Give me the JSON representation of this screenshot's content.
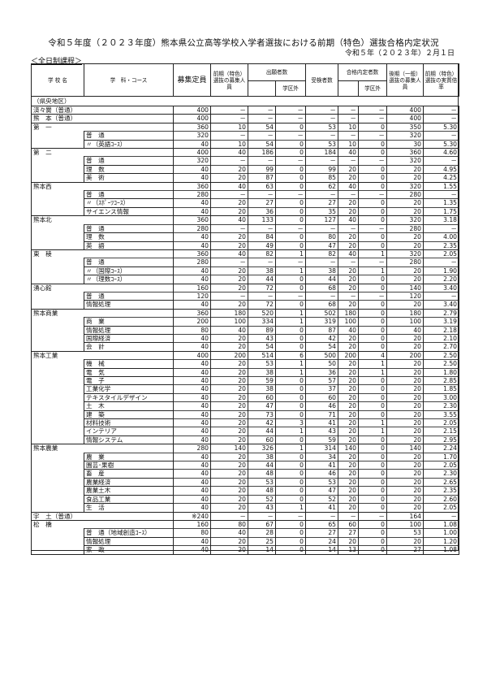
{
  "title": "令和５年度（２０２３年度）熊本県公立高等学校入学者選抜における前期（特色）選抜合格内定状況",
  "date": "令和５年（２０２３年）２月１日",
  "course_type": "＜全日制課程＞",
  "headers": {
    "school": "学 校 名",
    "course": "学　科・コース",
    "capacity": "募集定員",
    "early_quota": "前期（特色）選抜の募集人員",
    "applicants": "出願者数",
    "applicants_outside": "学区外",
    "examinees": "受検者数",
    "passed": "合格内定者数",
    "passed_outside": "学区外",
    "later_quota": "後期（一般）選抜の募集人員",
    "ratio": "前期（特色）選抜の実質倍率"
  },
  "region": "（県央地区）",
  "rows": [
    [
      "済々黌（普通）",
      "",
      "400",
      "－",
      "－",
      "－",
      "－",
      "－",
      "－",
      "400",
      "－"
    ],
    [
      "熊　本（普通）",
      "",
      "400",
      "－",
      "－",
      "－",
      "－",
      "－",
      "－",
      "400",
      "－"
    ],
    [
      "第　一",
      "",
      "360",
      "10",
      "54",
      "0",
      "53",
      "10",
      "0",
      "350",
      "5.30"
    ],
    [
      "",
      "普　通",
      "320",
      "－",
      "－",
      "－",
      "－",
      "－",
      "－",
      "320",
      "－"
    ],
    [
      "",
      "〃（英語ｺｰｽ）",
      "40",
      "10",
      "54",
      "0",
      "53",
      "10",
      "0",
      "30",
      "5.30"
    ],
    [
      "第　二",
      "",
      "400",
      "40",
      "186",
      "0",
      "184",
      "40",
      "0",
      "360",
      "4.60"
    ],
    [
      "",
      "普　通",
      "320",
      "－",
      "－",
      "－",
      "－",
      "－",
      "－",
      "320",
      "－"
    ],
    [
      "",
      "理　数",
      "40",
      "20",
      "99",
      "0",
      "99",
      "20",
      "0",
      "20",
      "4.95"
    ],
    [
      "",
      "美　術",
      "40",
      "20",
      "87",
      "0",
      "85",
      "20",
      "0",
      "20",
      "4.25"
    ],
    [
      "熊本西",
      "",
      "360",
      "40",
      "63",
      "0",
      "62",
      "40",
      "0",
      "320",
      "1.55"
    ],
    [
      "",
      "普　通",
      "280",
      "－",
      "－",
      "－",
      "－",
      "－",
      "－",
      "280",
      "－"
    ],
    [
      "",
      "〃（ｽﾎﾟｰﾂｺｰｽ）",
      "40",
      "20",
      "27",
      "0",
      "27",
      "20",
      "0",
      "20",
      "1.35"
    ],
    [
      "",
      "サイエンス情報",
      "40",
      "20",
      "36",
      "0",
      "35",
      "20",
      "0",
      "20",
      "1.75"
    ],
    [
      "熊本北",
      "",
      "360",
      "40",
      "133",
      "0",
      "127",
      "40",
      "0",
      "320",
      "3.18"
    ],
    [
      "",
      "普　通",
      "280",
      "－",
      "－",
      "－",
      "－",
      "－",
      "－",
      "280",
      "－"
    ],
    [
      "",
      "理　数",
      "40",
      "20",
      "84",
      "0",
      "80",
      "20",
      "0",
      "20",
      "4.00"
    ],
    [
      "",
      "英　語",
      "40",
      "20",
      "49",
      "0",
      "47",
      "20",
      "0",
      "20",
      "2.35"
    ],
    [
      "東　稜",
      "",
      "360",
      "40",
      "82",
      "1",
      "82",
      "40",
      "1",
      "320",
      "2.05"
    ],
    [
      "",
      "普　通",
      "280",
      "－",
      "－",
      "－",
      "－",
      "－",
      "－",
      "280",
      "－"
    ],
    [
      "",
      "〃（国際ｺｰｽ）",
      "40",
      "20",
      "38",
      "1",
      "38",
      "20",
      "1",
      "20",
      "1.90"
    ],
    [
      "",
      "〃（理数ｺｰｽ）",
      "40",
      "20",
      "44",
      "0",
      "44",
      "20",
      "0",
      "20",
      "2.20"
    ],
    [
      "湧心館",
      "",
      "160",
      "20",
      "72",
      "0",
      "68",
      "20",
      "0",
      "140",
      "3.40"
    ],
    [
      "",
      "普　通",
      "120",
      "－",
      "－",
      "－",
      "－",
      "－",
      "－",
      "120",
      "－"
    ],
    [
      "",
      "情報処理",
      "40",
      "20",
      "72",
      "0",
      "68",
      "20",
      "0",
      "20",
      "3.40"
    ],
    [
      "熊本商業",
      "",
      "360",
      "180",
      "520",
      "1",
      "502",
      "180",
      "0",
      "180",
      "2.79"
    ],
    [
      "",
      "商　業",
      "200",
      "100",
      "334",
      "1",
      "319",
      "100",
      "0",
      "100",
      "3.19"
    ],
    [
      "",
      "情報処理",
      "80",
      "40",
      "89",
      "0",
      "87",
      "40",
      "0",
      "40",
      "2.18"
    ],
    [
      "",
      "国際経済",
      "40",
      "20",
      "43",
      "0",
      "42",
      "20",
      "0",
      "20",
      "2.10"
    ],
    [
      "",
      "会　計",
      "40",
      "20",
      "54",
      "0",
      "54",
      "20",
      "0",
      "20",
      "2.70"
    ],
    [
      "熊本工業",
      "",
      "400",
      "200",
      "514",
      "6",
      "500",
      "200",
      "4",
      "200",
      "2.50"
    ],
    [
      "",
      "機　械",
      "40",
      "20",
      "53",
      "1",
      "50",
      "20",
      "1",
      "20",
      "2.50"
    ],
    [
      "",
      "電　気",
      "40",
      "20",
      "38",
      "1",
      "36",
      "20",
      "1",
      "20",
      "1.80"
    ],
    [
      "",
      "電　子",
      "40",
      "20",
      "59",
      "0",
      "57",
      "20",
      "0",
      "20",
      "2.85"
    ],
    [
      "",
      "工業化学",
      "40",
      "20",
      "38",
      "0",
      "37",
      "20",
      "0",
      "20",
      "1.85"
    ],
    [
      "",
      "テキスタイルデザイン",
      "40",
      "20",
      "60",
      "0",
      "60",
      "20",
      "0",
      "20",
      "3.00"
    ],
    [
      "",
      "土　木",
      "40",
      "20",
      "47",
      "0",
      "46",
      "20",
      "0",
      "20",
      "2.30"
    ],
    [
      "",
      "建　築",
      "40",
      "20",
      "73",
      "0",
      "71",
      "20",
      "0",
      "20",
      "3.55"
    ],
    [
      "",
      "材料技術",
      "40",
      "20",
      "42",
      "3",
      "41",
      "20",
      "1",
      "20",
      "2.05"
    ],
    [
      "",
      "インテリア",
      "40",
      "20",
      "44",
      "1",
      "43",
      "20",
      "1",
      "20",
      "2.15"
    ],
    [
      "",
      "情報システム",
      "40",
      "20",
      "60",
      "0",
      "59",
      "20",
      "0",
      "20",
      "2.95"
    ],
    [
      "熊本農業",
      "",
      "280",
      "140",
      "326",
      "1",
      "314",
      "140",
      "0",
      "140",
      "2.24"
    ],
    [
      "",
      "農　業",
      "40",
      "20",
      "38",
      "0",
      "34",
      "20",
      "0",
      "20",
      "1.70"
    ],
    [
      "",
      "園芸･果樹",
      "40",
      "20",
      "44",
      "0",
      "41",
      "20",
      "0",
      "20",
      "2.05"
    ],
    [
      "",
      "畜　産",
      "40",
      "20",
      "48",
      "0",
      "46",
      "20",
      "0",
      "20",
      "2.30"
    ],
    [
      "",
      "農業経済",
      "40",
      "20",
      "53",
      "0",
      "53",
      "20",
      "0",
      "20",
      "2.65"
    ],
    [
      "",
      "農業土木",
      "40",
      "20",
      "48",
      "0",
      "47",
      "20",
      "0",
      "20",
      "2.35"
    ],
    [
      "",
      "食品工業",
      "40",
      "20",
      "52",
      "0",
      "52",
      "20",
      "0",
      "20",
      "2.60"
    ],
    [
      "",
      "生　活",
      "40",
      "20",
      "43",
      "1",
      "41",
      "20",
      "0",
      "20",
      "2.05"
    ],
    [
      "宇　土（普通）",
      "",
      "※240",
      "－",
      "－",
      "－",
      "－",
      "－",
      "－",
      "164",
      "－"
    ],
    [
      "松　橋",
      "",
      "160",
      "80",
      "67",
      "0",
      "65",
      "60",
      "0",
      "100",
      "1.08"
    ],
    [
      "",
      "普　通（地域創造ｺｰｽ）",
      "80",
      "40",
      "28",
      "0",
      "27",
      "27",
      "0",
      "53",
      "1.00"
    ],
    [
      "",
      "情報処理",
      "40",
      "20",
      "25",
      "0",
      "24",
      "20",
      "0",
      "20",
      "1.20"
    ],
    [
      "",
      "家　政",
      "40",
      "20",
      "14",
      "0",
      "14",
      "13",
      "0",
      "27",
      "1.08"
    ]
  ]
}
